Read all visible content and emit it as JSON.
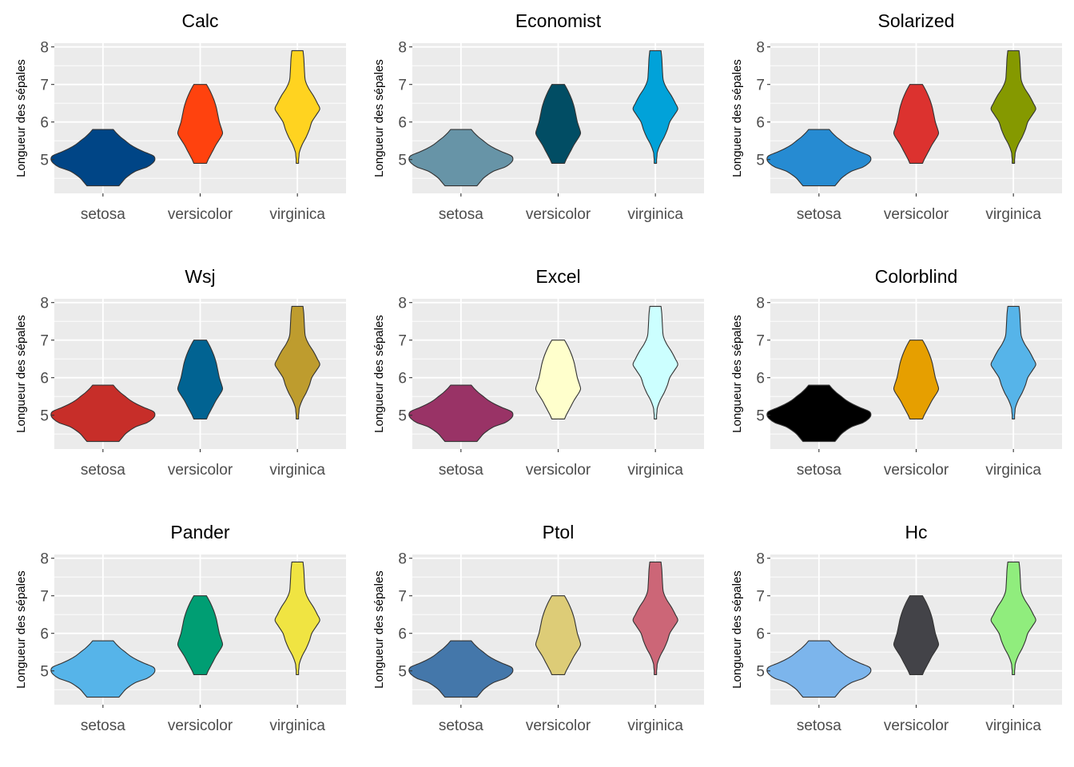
{
  "chart_data": [
    {
      "type": "violin",
      "title": "Calc",
      "ylabel": "Longueur des sépales",
      "categories": [
        "setosa",
        "versicolor",
        "virginica"
      ],
      "yticks": [
        5,
        6,
        7,
        8
      ],
      "ylim": [
        4.1,
        8.1
      ],
      "ranges": [
        [
          4.3,
          5.8
        ],
        [
          4.9,
          7.0
        ],
        [
          4.9,
          7.9
        ]
      ],
      "colors": [
        "#004586",
        "#ff420e",
        "#ffd320"
      ],
      "grid": true,
      "legend": "none"
    },
    {
      "type": "violin",
      "title": "Economist",
      "ylabel": "Longueur des sépales",
      "categories": [
        "setosa",
        "versicolor",
        "virginica"
      ],
      "yticks": [
        5,
        6,
        7,
        8
      ],
      "ylim": [
        4.1,
        8.1
      ],
      "ranges": [
        [
          4.3,
          5.8
        ],
        [
          4.9,
          7.0
        ],
        [
          4.9,
          7.9
        ]
      ],
      "colors": [
        "#6794a7",
        "#014d64",
        "#01a2d9"
      ],
      "grid": true,
      "legend": "none"
    },
    {
      "type": "violin",
      "title": "Solarized",
      "ylabel": "Longueur des sépales",
      "categories": [
        "setosa",
        "versicolor",
        "virginica"
      ],
      "yticks": [
        5,
        6,
        7,
        8
      ],
      "ylim": [
        4.1,
        8.1
      ],
      "ranges": [
        [
          4.3,
          5.8
        ],
        [
          4.9,
          7.0
        ],
        [
          4.9,
          7.9
        ]
      ],
      "colors": [
        "#268bd2",
        "#dc322f",
        "#859900"
      ],
      "grid": true,
      "legend": "none"
    },
    {
      "type": "violin",
      "title": "Wsj",
      "ylabel": "Longueur des sépales",
      "categories": [
        "setosa",
        "versicolor",
        "virginica"
      ],
      "yticks": [
        5,
        6,
        7,
        8
      ],
      "ylim": [
        4.1,
        8.1
      ],
      "ranges": [
        [
          4.3,
          5.8
        ],
        [
          4.9,
          7.0
        ],
        [
          4.9,
          7.9
        ]
      ],
      "colors": [
        "#c72e29",
        "#016392",
        "#be9c2e"
      ],
      "grid": true,
      "legend": "none"
    },
    {
      "type": "violin",
      "title": "Excel",
      "ylabel": "Longueur des sépales",
      "categories": [
        "setosa",
        "versicolor",
        "virginica"
      ],
      "yticks": [
        5,
        6,
        7,
        8
      ],
      "ylim": [
        4.1,
        8.1
      ],
      "ranges": [
        [
          4.3,
          5.8
        ],
        [
          4.9,
          7.0
        ],
        [
          4.9,
          7.9
        ]
      ],
      "colors": [
        "#993366",
        "#ffffcc",
        "#ccffff"
      ],
      "grid": true,
      "legend": "none"
    },
    {
      "type": "violin",
      "title": "Colorblind",
      "ylabel": "Longueur des sépales",
      "categories": [
        "setosa",
        "versicolor",
        "virginica"
      ],
      "yticks": [
        5,
        6,
        7,
        8
      ],
      "ylim": [
        4.1,
        8.1
      ],
      "ranges": [
        [
          4.3,
          5.8
        ],
        [
          4.9,
          7.0
        ],
        [
          4.9,
          7.9
        ]
      ],
      "colors": [
        "#000000",
        "#e69f00",
        "#56b4e9"
      ],
      "grid": true,
      "legend": "none"
    },
    {
      "type": "violin",
      "title": "Pander",
      "ylabel": "Longueur des sépales",
      "categories": [
        "setosa",
        "versicolor",
        "virginica"
      ],
      "yticks": [
        5,
        6,
        7,
        8
      ],
      "ylim": [
        4.1,
        8.1
      ],
      "ranges": [
        [
          4.3,
          5.8
        ],
        [
          4.9,
          7.0
        ],
        [
          4.9,
          7.9
        ]
      ],
      "colors": [
        "#56b4e9",
        "#009e73",
        "#f0e442"
      ],
      "grid": true,
      "legend": "none"
    },
    {
      "type": "violin",
      "title": "Ptol",
      "ylabel": "Longueur des sépales",
      "categories": [
        "setosa",
        "versicolor",
        "virginica"
      ],
      "yticks": [
        5,
        6,
        7,
        8
      ],
      "ylim": [
        4.1,
        8.1
      ],
      "ranges": [
        [
          4.3,
          5.8
        ],
        [
          4.9,
          7.0
        ],
        [
          4.9,
          7.9
        ]
      ],
      "colors": [
        "#4477aa",
        "#ddcc77",
        "#cc6677"
      ],
      "grid": true,
      "legend": "none"
    },
    {
      "type": "violin",
      "title": "Hc",
      "ylabel": "Longueur des sépales",
      "categories": [
        "setosa",
        "versicolor",
        "virginica"
      ],
      "yticks": [
        5,
        6,
        7,
        8
      ],
      "ylim": [
        4.1,
        8.1
      ],
      "ranges": [
        [
          4.3,
          5.8
        ],
        [
          4.9,
          7.0
        ],
        [
          4.9,
          7.9
        ]
      ],
      "colors": [
        "#7cb5ec",
        "#434348",
        "#90ed7d"
      ],
      "grid": true,
      "legend": "none"
    }
  ]
}
